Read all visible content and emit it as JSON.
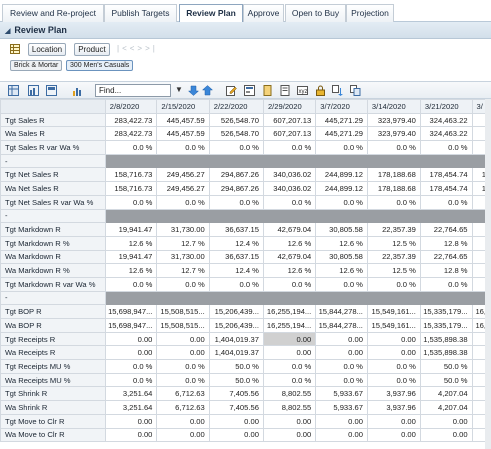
{
  "tabs": [
    {
      "label": "Review and Re-project"
    },
    {
      "label": "Publish Targets"
    },
    {
      "label": "Review Plan"
    },
    {
      "label": "Approve"
    },
    {
      "label": "Open to Buy"
    },
    {
      "label": "Projection"
    }
  ],
  "panel": {
    "title": "Review Plan"
  },
  "controls": {
    "location_label": "Location",
    "product_label": "Product",
    "crumbs": [
      "Brick & Mortar",
      "300 Men's Casuals"
    ]
  },
  "toolbar": {
    "find_value": "Find..."
  },
  "grid": {
    "dates": [
      "2/8/2020",
      "2/15/2020",
      "2/22/2020",
      "2/29/2020",
      "3/7/2020",
      "3/14/2020",
      "3/21/2020",
      "3/"
    ],
    "rows": [
      {
        "label": "Tgt Sales R",
        "values": [
          "283,422.73",
          "445,457.59",
          "526,548.70",
          "607,207.13",
          "445,271.29",
          "323,979.40",
          "324,463.22",
          ""
        ]
      },
      {
        "label": "Wa Sales R",
        "values": [
          "283,422.73",
          "445,457.59",
          "526,548.70",
          "607,207.13",
          "445,271.29",
          "323,979.40",
          "324,463.22",
          ""
        ]
      },
      {
        "label": "Tgt Sales R var Wa %",
        "values": [
          "0.0 %",
          "0.0 %",
          "0.0 %",
          "0.0 %",
          "0.0 %",
          "0.0 %",
          "0.0 %",
          ""
        ]
      },
      {
        "label": "-",
        "sep": true
      },
      {
        "label": "Tgt Net Sales R",
        "values": [
          "158,716.73",
          "249,456.27",
          "294,867.26",
          "340,036.02",
          "244,899.12",
          "178,188.68",
          "178,454.74",
          "1"
        ]
      },
      {
        "label": "Wa Net Sales R",
        "values": [
          "158,716.73",
          "249,456.27",
          "294,867.26",
          "340,036.02",
          "244,899.12",
          "178,188.68",
          "178,454.74",
          "1"
        ]
      },
      {
        "label": "Tgt Net Sales R var Wa %",
        "values": [
          "0.0 %",
          "0.0 %",
          "0.0 %",
          "0.0 %",
          "0.0 %",
          "0.0 %",
          "0.0 %",
          ""
        ]
      },
      {
        "label": "-",
        "sep": true
      },
      {
        "label": "Tgt Markdown R",
        "values": [
          "19,941.47",
          "31,730.00",
          "36,637.15",
          "42,679.04",
          "30,805.58",
          "22,357.39",
          "22,764.65",
          ""
        ]
      },
      {
        "label": "Tgt Markdown R %",
        "values": [
          "12.6 %",
          "12.7 %",
          "12.4 %",
          "12.6 %",
          "12.6 %",
          "12.5 %",
          "12.8 %",
          ""
        ]
      },
      {
        "label": "Wa Markdown R",
        "values": [
          "19,941.47",
          "31,730.00",
          "36,637.15",
          "42,679.04",
          "30,805.58",
          "22,357.39",
          "22,764.65",
          ""
        ]
      },
      {
        "label": "Wa Markdown R %",
        "values": [
          "12.6 %",
          "12.7 %",
          "12.4 %",
          "12.6 %",
          "12.6 %",
          "12.5 %",
          "12.8 %",
          ""
        ]
      },
      {
        "label": "Tgt Markdown R var Wa %",
        "values": [
          "0.0 %",
          "0.0 %",
          "0.0 %",
          "0.0 %",
          "0.0 %",
          "0.0 %",
          "0.0 %",
          ""
        ]
      },
      {
        "label": "-",
        "sep": true
      },
      {
        "label": "Tgt BOP R",
        "values": [
          "15,698,947...",
          "15,508,515...",
          "15,206,439...",
          "16,255,194...",
          "15,844,278...",
          "15,549,161...",
          "15,335,179...",
          "16,"
        ]
      },
      {
        "label": "Wa BOP R",
        "values": [
          "15,698,947...",
          "15,508,515...",
          "15,206,439...",
          "16,255,194...",
          "15,844,278...",
          "15,549,161...",
          "15,335,179...",
          "16,"
        ]
      },
      {
        "label": "Tgt Receipts R",
        "values": [
          "0.00",
          "0.00",
          "1,404,019.37",
          "0.00",
          "0.00",
          "0.00",
          "1,535,898.38",
          ""
        ],
        "hl": 3
      },
      {
        "label": "Wa Receipts R",
        "values": [
          "0.00",
          "0.00",
          "1,404,019.37",
          "0.00",
          "0.00",
          "0.00",
          "1,535,898.38",
          ""
        ]
      },
      {
        "label": "Tgt Receipts MU %",
        "values": [
          "0.0 %",
          "0.0 %",
          "50.0 %",
          "0.0 %",
          "0.0 %",
          "0.0 %",
          "50.0 %",
          ""
        ]
      },
      {
        "label": "Wa Receipts MU %",
        "values": [
          "0.0 %",
          "0.0 %",
          "50.0 %",
          "0.0 %",
          "0.0 %",
          "0.0 %",
          "50.0 %",
          ""
        ]
      },
      {
        "label": "Tgt Shrink R",
        "values": [
          "3,251.64",
          "6,712.63",
          "7,405.56",
          "8,802.55",
          "5,933.67",
          "3,937.96",
          "4,207.04",
          ""
        ]
      },
      {
        "label": "Wa Shrink R",
        "values": [
          "3,251.64",
          "6,712.63",
          "7,405.56",
          "8,802.55",
          "5,933.67",
          "3,937.96",
          "4,207.04",
          ""
        ]
      },
      {
        "label": "Tgt Move to Clr R",
        "values": [
          "0.00",
          "0.00",
          "0.00",
          "0.00",
          "0.00",
          "0.00",
          "0.00",
          ""
        ]
      },
      {
        "label": "Wa Move to Clr R",
        "values": [
          "0.00",
          "0.00",
          "0.00",
          "0.00",
          "0.00",
          "0.00",
          "0.00",
          ""
        ]
      }
    ]
  }
}
